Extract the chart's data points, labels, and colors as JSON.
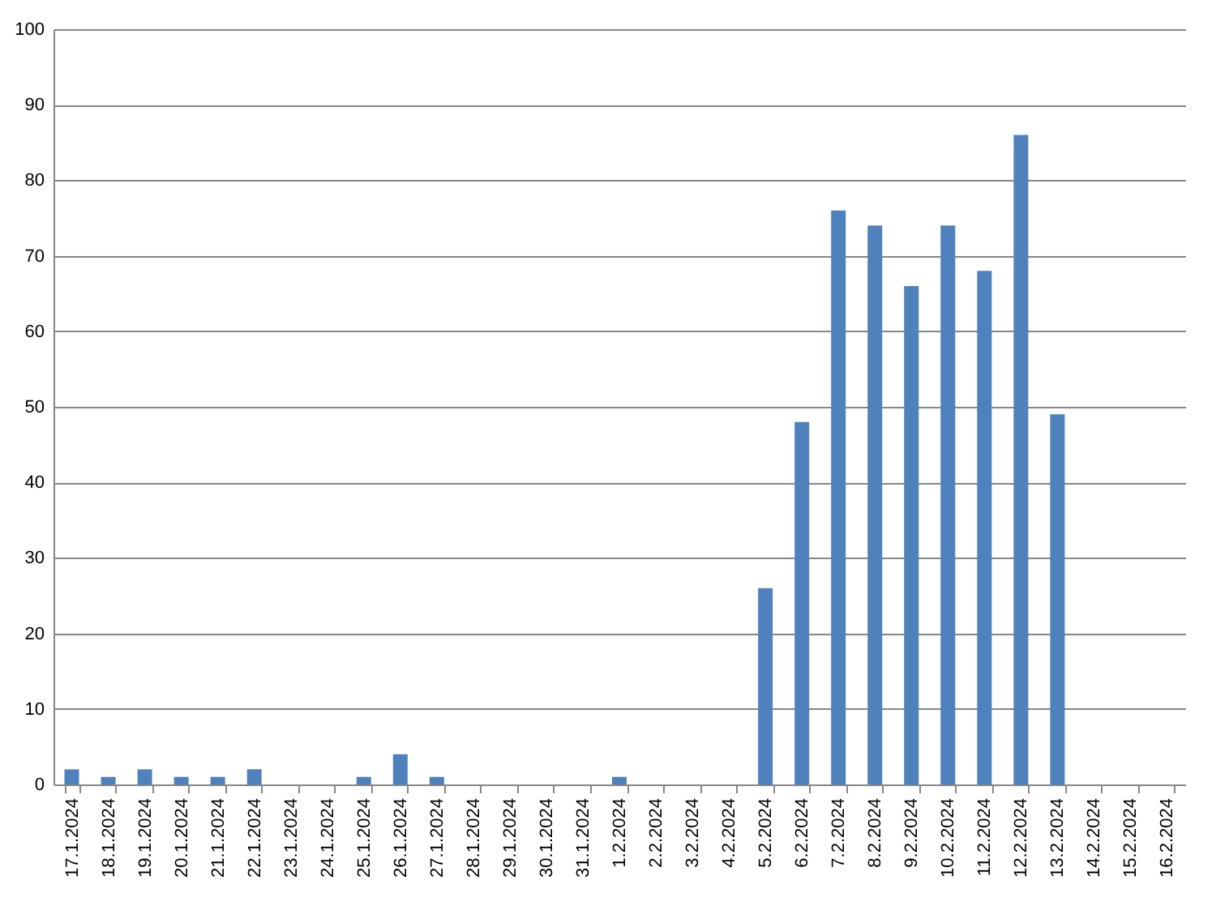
{
  "chart_data": {
    "type": "bar",
    "categories": [
      "17.1.2024",
      "18.1.2024",
      "19.1.2024",
      "20.1.2024",
      "21.1.2024",
      "22.1.2024",
      "23.1.2024",
      "24.1.2024",
      "25.1.2024",
      "26.1.2024",
      "27.1.2024",
      "28.1.2024",
      "29.1.2024",
      "30.1.2024",
      "31.1.2024",
      "1.2.2024",
      "2.2.2024",
      "3.2.2024",
      "4.2.2024",
      "5.2.2024",
      "6.2.2024",
      "7.2.2024",
      "8.2.2024",
      "9.2.2024",
      "10.2.2024",
      "11.2.2024",
      "12.2.2024",
      "13.2.2024",
      "14.2.2024",
      "15.2.2024",
      "16.2.2024"
    ],
    "values": [
      2,
      1,
      2,
      1,
      1,
      2,
      0,
      0,
      1,
      4,
      1,
      0,
      0,
      0,
      0,
      1,
      0,
      0,
      0,
      26,
      48,
      76,
      74,
      66,
      74,
      68,
      86,
      49,
      0,
      0,
      0
    ],
    "color": "#4f81bd",
    "ylim": [
      0,
      100
    ],
    "yticks": [
      0,
      10,
      20,
      30,
      40,
      50,
      60,
      70,
      80,
      90,
      100
    ],
    "grid": "y"
  }
}
